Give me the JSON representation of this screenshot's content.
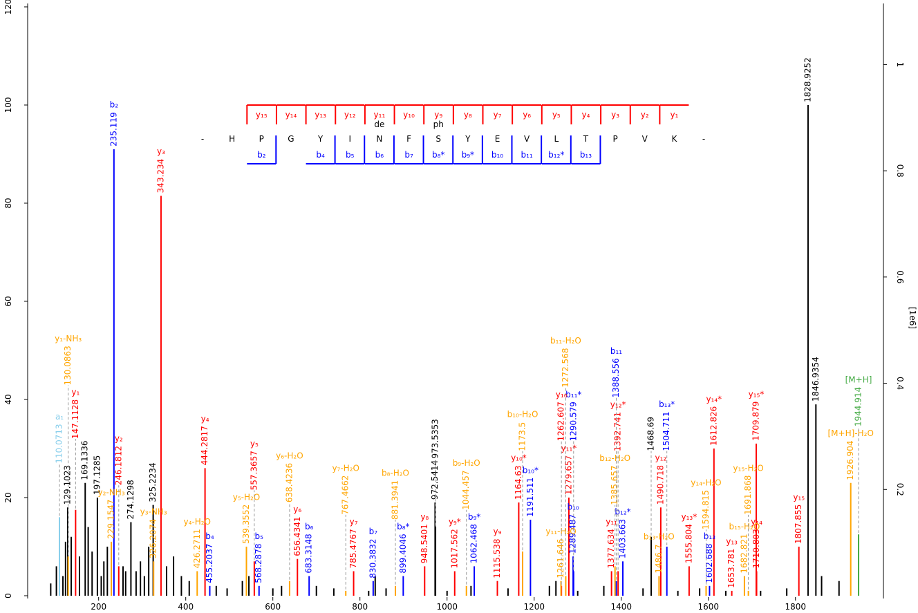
{
  "chart_data": {
    "type": "spectrum",
    "xlim": [
      37,
      2002
    ],
    "ylim": [
      0,
      120.7
    ],
    "y2lim": [
      0,
      1.115
    ],
    "xticks": [
      200,
      400,
      600,
      800,
      1000,
      1200,
      1400,
      1600,
      1800
    ],
    "yticks": [
      0,
      20,
      40,
      60,
      80,
      100,
      120
    ],
    "y2ticks": [
      0.2,
      0.4,
      0.6,
      0.8,
      1
    ],
    "y2label": "[1e6]",
    "peptide": {
      "residues": [
        "-",
        "H",
        "P",
        "G",
        "Y",
        "I",
        "N",
        "F",
        "S",
        "Y",
        "E",
        "V",
        "L",
        "T",
        "P",
        "V",
        "K",
        "-"
      ],
      "modifications": [
        null,
        null,
        null,
        null,
        null,
        null,
        "de",
        null,
        "ph",
        null,
        null,
        null,
        null,
        null,
        null,
        null,
        null,
        null
      ],
      "y_ions": [
        null,
        null,
        "y₁₅",
        "y₁₄",
        "y₁₃",
        "y₁₂",
        "y₁₁",
        "y₁₀",
        "y₉",
        "y₈",
        "y₇",
        "y₆",
        "y₅",
        "y₄",
        "y₃",
        "y₂",
        "y₁",
        null
      ],
      "b_ions": [
        null,
        null,
        "b₂",
        null,
        "b₄",
        "b₅",
        "b₆",
        "b₇",
        "b₈*",
        "b₉*",
        "b₁₀",
        "b₁₁",
        "b₁₂*",
        "b₁₃",
        null,
        null,
        null,
        null
      ],
      "y_color": "#ff0000",
      "b_color": "#0000ff"
    },
    "series": [
      {
        "color": "#87ceeb",
        "show_labels": true,
        "x": [
          110.0713
        ],
        "values": [
          16
        ],
        "labels": [
          "a₁"
        ]
      },
      {
        "color": "#000000",
        "show_labels": true,
        "x": [
          129.1023,
          169.1336,
          197.1285,
          274.1298,
          325.2234,
          972.5414,
          973.5353,
          1468.69,
          1828.9252,
          1846.9354
        ],
        "values": [
          18,
          23,
          20,
          15,
          18.5,
          19,
          14,
          12,
          100,
          39
        ],
        "labels": [
          null,
          null,
          null,
          null,
          null,
          null,
          null,
          null,
          null,
          null
        ]
      },
      {
        "color": "#ff0000",
        "show_labels": true,
        "x": [
          147.1128,
          246.1812,
          343.234,
          444.2817,
          557.3657,
          656.4341,
          785.4767,
          948.5401,
          1017.562,
          1115.538,
          1164.63,
          1262.607,
          1279.657,
          1377.634,
          1392.741,
          1490.718,
          1555.804,
          1612.826,
          1653.781,
          1709.879,
          1710.803,
          1807.855
        ],
        "values": [
          17.5,
          6,
          81.5,
          26,
          7,
          7.5,
          5,
          6,
          5,
          3,
          19,
          2,
          20,
          5,
          5,
          18,
          6,
          30,
          1,
          31,
          5,
          10
        ],
        "labels": [
          "y₁",
          "y₂",
          "y₃",
          "y₄",
          "y₅",
          "y₆",
          "y₇",
          "y₈",
          "y₉*",
          "y₉",
          "y₁₀*",
          "y₁₀",
          "y₁₁*",
          "y₁₁",
          "y₁₂*",
          "y₁₂",
          "y₁₃*",
          "y₁₄*",
          "y₁₃",
          "y₁₅*",
          "y₁₄",
          "y₁₅"
        ]
      },
      {
        "color": "#0000ff",
        "show_labels": true,
        "x": [
          235.119,
          455.2037,
          568.2878,
          683.3148,
          830.3832,
          899.4046,
          1062.468,
          1191.511,
          1289.487,
          1290.579,
          1388.556,
          1403.663,
          1504.711,
          1602.688
        ],
        "values": [
          91,
          2,
          2,
          4,
          3,
          4,
          6,
          15.5,
          8,
          5,
          3,
          7,
          10,
          2
        ],
        "labels": [
          "b₂",
          "b₄",
          "b₅",
          "b₆",
          "b₇",
          "b₈*",
          "b₉*",
          "b₁₀*",
          "b₁₀",
          "b₁₁*",
          "b₁₁",
          "b₁₂*",
          "b₁₃*",
          "b₁₃"
        ]
      },
      {
        "color": "#ffa500",
        "show_labels": true,
        "x": [
          130.0863,
          229.1547,
          326.2074,
          426.2711,
          539.3552,
          638.4236,
          767.4662,
          881.3941,
          1044.457,
          1173.5,
          1261.646,
          1272.568,
          1385.657,
          1486.7,
          1594.815,
          1682.821,
          1691.868,
          1926.904
        ],
        "values": [
          8,
          11,
          7,
          5,
          10,
          3,
          1,
          2,
          2,
          9,
          3,
          4,
          6,
          4,
          2,
          4,
          1,
          23
        ],
        "labels": [
          "y₁-NH₃",
          "y₂-NH₃",
          "y₃-NH₃",
          "y₄-H₂O",
          "y₅-H₂O",
          "y₆-H₂O",
          "y₇-H₂O",
          "b₈-H₂O",
          "b₉-H₂O",
          "b₁₀-H₂O",
          "y₁₁-H₂O",
          "b₁₁-H₂O",
          "b₁₂-H₂O",
          "b₁₃-H₂O",
          "y₁₄-H₂O",
          "b₁₅-H₂O",
          "y₁₅-H₂O",
          "[M+H]-H₂O"
        ]
      },
      {
        "color": "#44aa44",
        "show_labels": true,
        "x": [
          1944.914
        ],
        "values": [
          12.5
        ],
        "labels": [
          "[M+H]"
        ]
      },
      {
        "color": "#000000",
        "show_labels": false,
        "x": [
          90,
          103,
          118,
          124,
          137,
          156,
          176,
          185,
          206,
          212,
          220,
          256,
          262,
          286,
          296,
          305,
          315,
          356,
          372,
          390,
          408,
          470,
          495,
          530,
          545,
          600,
          620,
          700,
          740,
          820,
          835,
          860,
          1000,
          1055,
          1140,
          1235,
          1250,
          1300,
          1360,
          1450,
          1530,
          1580,
          1640,
          1720,
          1780,
          1860,
          1900
        ],
        "values": [
          2.5,
          6,
          4,
          11,
          12,
          8,
          14,
          9,
          4,
          7,
          10,
          6,
          5,
          5,
          7,
          4,
          10,
          6,
          8,
          4,
          3,
          2,
          1.5,
          3,
          4,
          1.5,
          2,
          2,
          1.5,
          1,
          4,
          1.5,
          1,
          2,
          1.5,
          2,
          3,
          1,
          2,
          1.5,
          1,
          1.5,
          1,
          1,
          1.5,
          4,
          3
        ]
      }
    ]
  }
}
